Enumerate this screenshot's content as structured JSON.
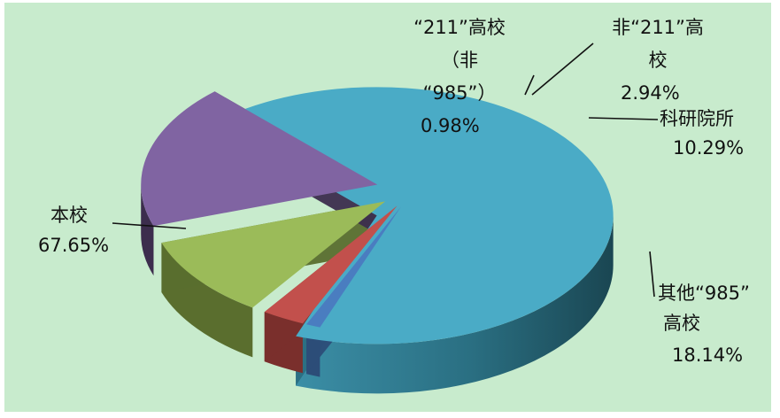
{
  "chart_data": {
    "type": "pie",
    "style": "3d-exploded",
    "title": "",
    "slices": [
      {
        "label": "本校",
        "value": 67.65,
        "percent_text": "67.65%",
        "color": "#4aabc6",
        "side_color": "#2a6f82"
      },
      {
        "label": "“211”高校（非“985”）",
        "value": 0.98,
        "percent_text": "0.98%",
        "color": "#4a7dc0",
        "side_color": "#2c4d78"
      },
      {
        "label": "非“211”高校",
        "value": 2.94,
        "percent_text": "2.94%",
        "color": "#c2504c",
        "side_color": "#7a2f2c"
      },
      {
        "label": "科研院所",
        "value": 10.29,
        "percent_text": "10.29%",
        "color": "#9bbb59",
        "side_color": "#5a6e2e"
      },
      {
        "label": "其他“985”高校",
        "value": 18.14,
        "percent_text": "18.14%",
        "color": "#8064a2",
        "side_color": "#3c2d4d"
      }
    ]
  },
  "labels": {
    "benxiao_name": "本校",
    "benxiao_pct": "67.65%",
    "g211_line1": "“211”高校",
    "g211_line2": "（非",
    "g211_line3": "“985”）",
    "g211_pct": "0.98%",
    "non211_line1": "非“211”高",
    "non211_line2": "校",
    "non211_pct": "2.94%",
    "keyan_name": "科研院所",
    "keyan_pct": "10.29%",
    "other985_line1": "其他“985”",
    "other985_line2": "高校",
    "other985_pct": "18.14%"
  }
}
